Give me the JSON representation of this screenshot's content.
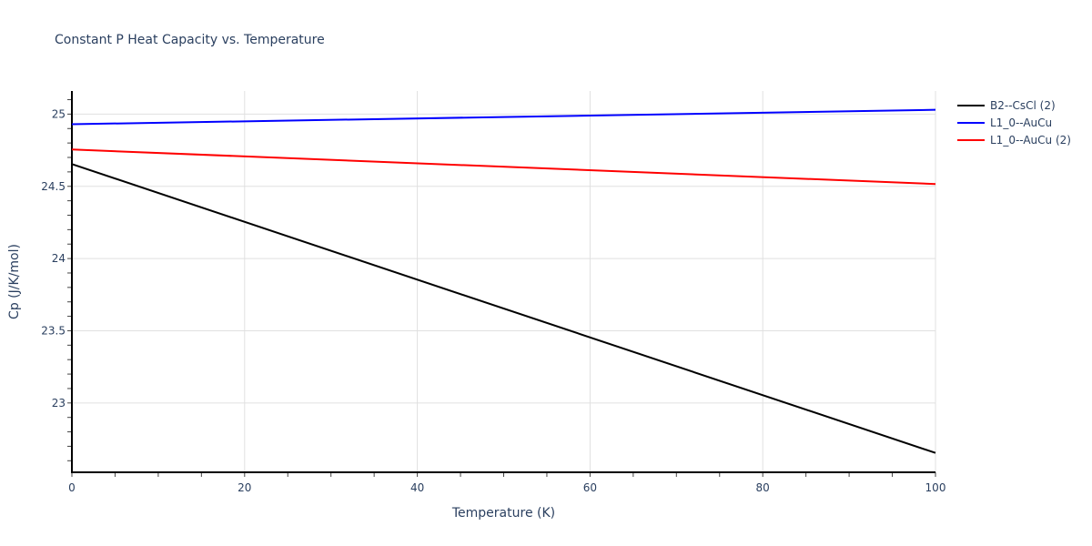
{
  "chart_data": {
    "type": "line",
    "title": "Constant P Heat Capacity vs. Temperature",
    "xlabel": "Temperature (K)",
    "ylabel": "Cp (J/K/mol)",
    "xlim": [
      0,
      100
    ],
    "ylim": [
      22.52,
      25.16
    ],
    "x_ticks": [
      "0",
      "20",
      "40",
      "60",
      "80",
      "100"
    ],
    "y_ticks": [
      "23",
      "23.5",
      "24",
      "24.5",
      "25"
    ],
    "grid": true,
    "legend_position": "right",
    "x": [
      0,
      100
    ],
    "series": [
      {
        "name": "B2--CsCl (2)",
        "color": "#000000",
        "values": [
          24.654,
          22.654
        ]
      },
      {
        "name": "L1_0--AuCu",
        "color": "#0000ff",
        "values": [
          24.93,
          25.03
        ]
      },
      {
        "name": "L1_0--AuCu (2)",
        "color": "#ff0000",
        "values": [
          24.755,
          24.516
        ]
      }
    ]
  }
}
